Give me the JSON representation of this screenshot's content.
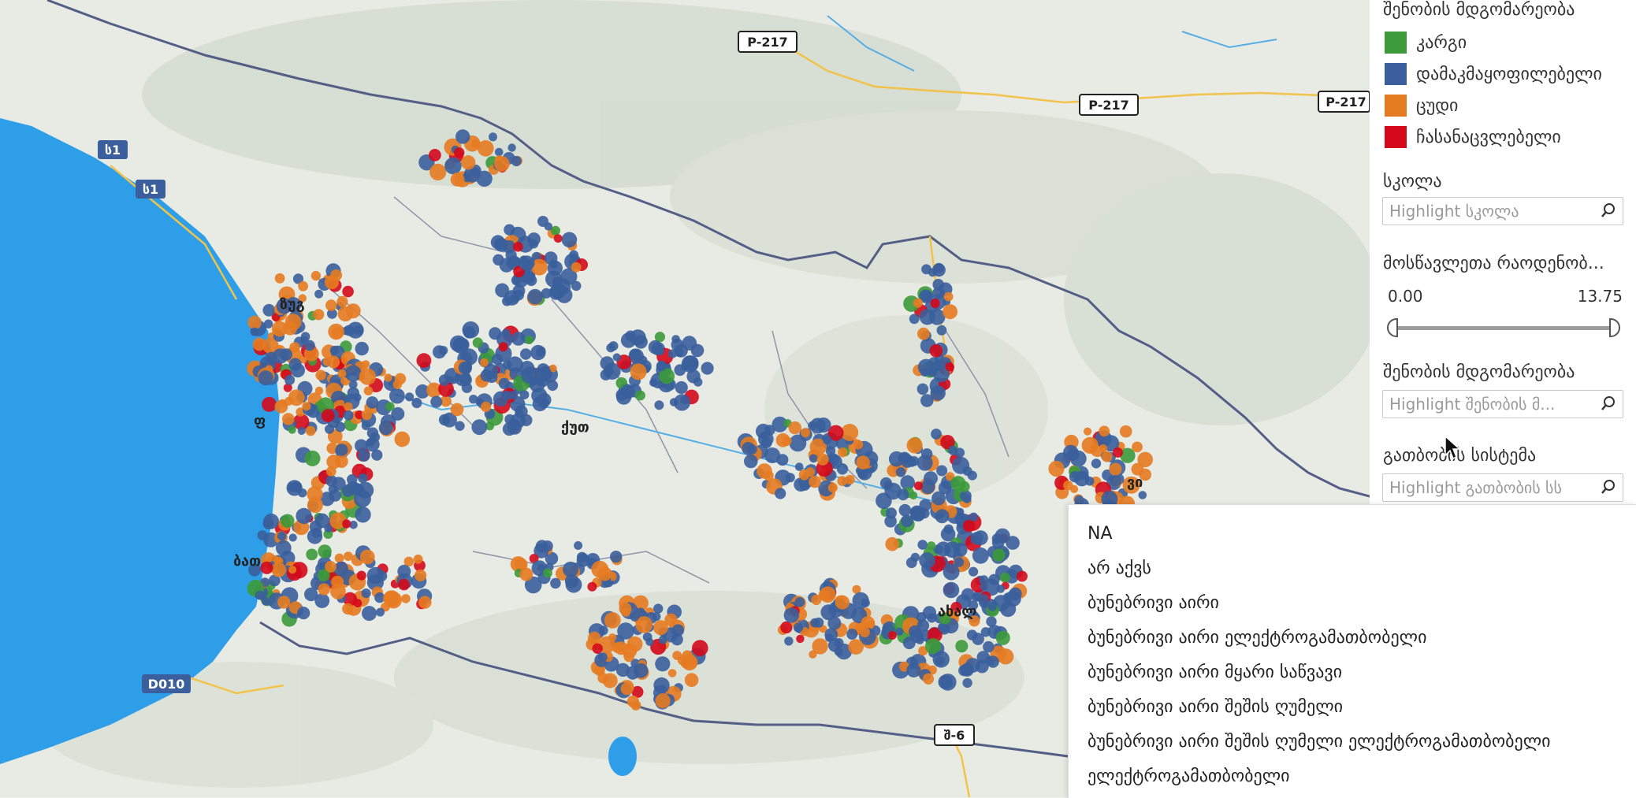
{
  "map": {
    "road_labels": [
      {
        "text": "P-217",
        "id": "p217-a"
      },
      {
        "text": "P-217",
        "id": "p217-b"
      },
      {
        "text": "P-217",
        "id": "p217-c"
      },
      {
        "text": "ს1",
        "id": "s1-a"
      },
      {
        "text": "ს1",
        "id": "s1-b"
      },
      {
        "text": "D010",
        "id": "d010"
      },
      {
        "text": "შ-6",
        "id": "sh6"
      }
    ],
    "place_labels": [
      "ზუგ",
      "ფ",
      "ქუთ",
      "ბათ",
      "ახალ",
      "ვი"
    ],
    "colors": {
      "sea": "#2f9ee8",
      "land": "#e8ebe4",
      "good": "#3c9a3a",
      "satisfactory": "#3a5f9c",
      "bad": "#e57b21",
      "replace": "#d4091b",
      "border": "#545f86",
      "road": "#f1c34a"
    }
  },
  "panel": {
    "legend_title": "შენობის მდგომარეობა",
    "legend_items": [
      {
        "label": "კარგი",
        "color": "#3c9a3a"
      },
      {
        "label": "დამაკმაყოფილებელი",
        "color": "#3a5f9c"
      },
      {
        "label": "ცუდი",
        "color": "#e57b21"
      },
      {
        "label": "ჩასანაცვლებელი",
        "color": "#d4091b"
      }
    ],
    "school_title": "სკოლა",
    "school_placeholder": "Highlight სკოლა",
    "students_title": "მოსწავლეთა რაოდენობ...",
    "slider_min": "0.00",
    "slider_max": "13.75",
    "condition_title": "შენობის მდგომარეობა",
    "condition_placeholder": "Highlight შენობის მ...",
    "heating_title": "გათბობის სისტემა",
    "heating_placeholder": "Highlight გათბობის სს"
  },
  "dropdown": {
    "options": [
      "NA",
      "არ აქვს",
      "ბუნებრივი აირი",
      "ბუნებრივი აირი ელექტროგამათბობელი",
      "ბუნებრივი აირი მყარი საწვავი",
      "ბუნებრივი აირი შეშის ღუმელი",
      "ბუნებრივი აირი შეშის ღუმელი ელექტროგამათბობელი",
      "ელექტროგამათბობელი"
    ]
  }
}
